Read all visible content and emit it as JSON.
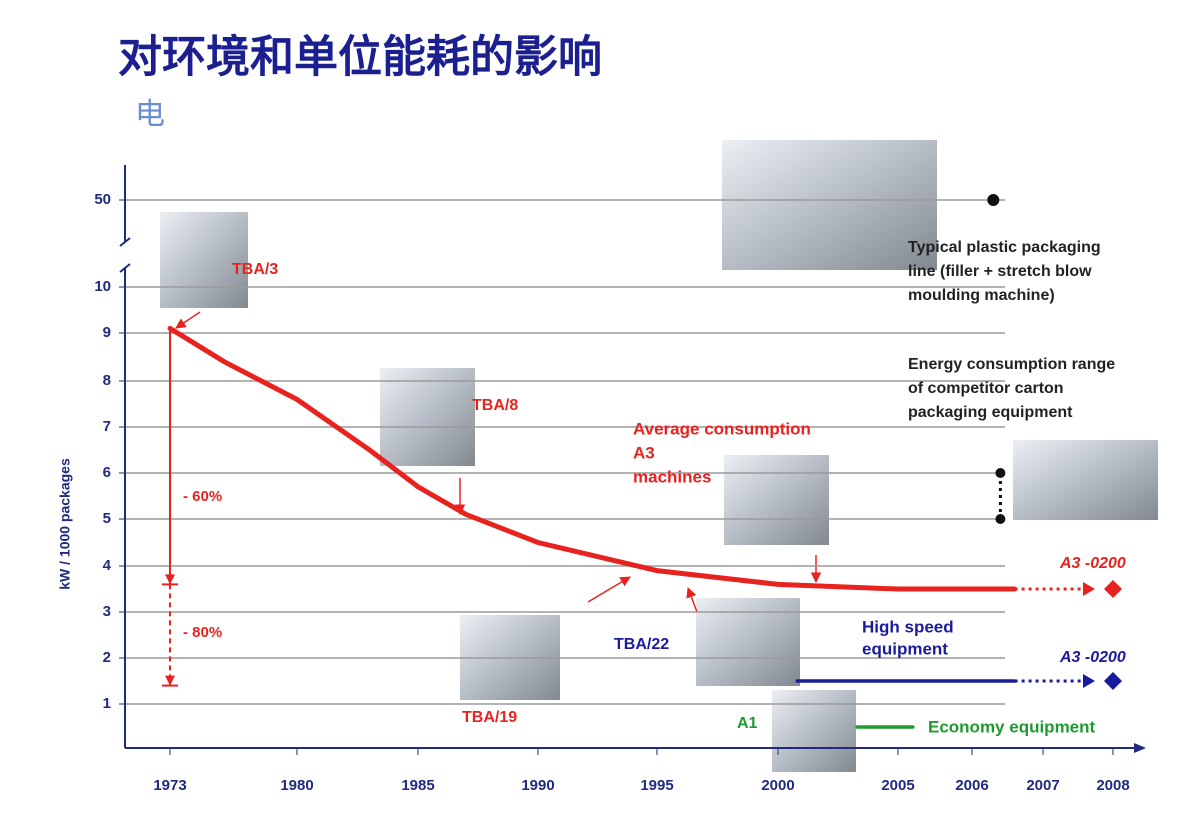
{
  "title": "对环境和单位能耗的影响",
  "subtitle": "电",
  "chart_data": {
    "type": "line",
    "y_label": "kW / 1000 packages",
    "xticks": [
      1973,
      1980,
      1985,
      1990,
      1995,
      2000,
      2005,
      2006,
      2007,
      2008
    ],
    "yticks": [
      1,
      2,
      3,
      4,
      5,
      6,
      7,
      8,
      9,
      10,
      50
    ],
    "grid": true,
    "y_break": true,
    "series": [
      {
        "label": [
          "Average consumption",
          "A3",
          "machines"
        ],
        "color": "#e8231f",
        "x": [
          1973,
          1976,
          1980,
          1983,
          1985,
          1987,
          1990,
          1995,
          2000,
          2005,
          2006.6
        ],
        "values": [
          9.1,
          8.4,
          7.6,
          6.5,
          5.7,
          5.1,
          4.5,
          3.9,
          3.6,
          3.5,
          3.5
        ],
        "projection": {
          "x": [
            2006.6,
            2007.6
          ],
          "values": [
            3.5,
            3.5
          ]
        },
        "target": {
          "x": 2008,
          "value": 3.5,
          "label": "A3 -0200"
        }
      },
      {
        "label": [
          "High speed",
          "equipment"
        ],
        "color": "#1a1a9c",
        "x": [
          2000.8,
          2006.6
        ],
        "values": [
          1.5,
          1.5
        ],
        "projection": {
          "x": [
            2006.6,
            2007.6
          ],
          "values": [
            1.5,
            1.5
          ]
        },
        "target": {
          "x": 2008,
          "value": 1.5,
          "label": "A3 -0200"
        }
      },
      {
        "label": [
          "Economy equipment"
        ],
        "color": "#1f9a2f",
        "x": [
          2003.3,
          2005.2
        ],
        "values": [
          0.5,
          0.5
        ]
      }
    ],
    "points": [
      {
        "label": [
          "Typical plastic packaging",
          "line (filler + stretch blow",
          "moulding machine)"
        ],
        "x": 2006.3,
        "value": 50
      }
    ],
    "ranges": [
      {
        "label": [
          "Energy consumption range",
          "of competitor carton",
          "packaging equipment"
        ],
        "x": 2006.4,
        "values": [
          5,
          6
        ]
      }
    ],
    "reductions": [
      {
        "x": 1973,
        "values": [
          9.1,
          3.6
        ],
        "label": "- 60%"
      },
      {
        "x": 1973,
        "values": [
          3.6,
          1.4
        ],
        "label": "- 80%"
      }
    ],
    "machines": [
      "TBA/3",
      "TBA/8",
      "TBA/19",
      "TBA/22",
      "A1"
    ]
  }
}
